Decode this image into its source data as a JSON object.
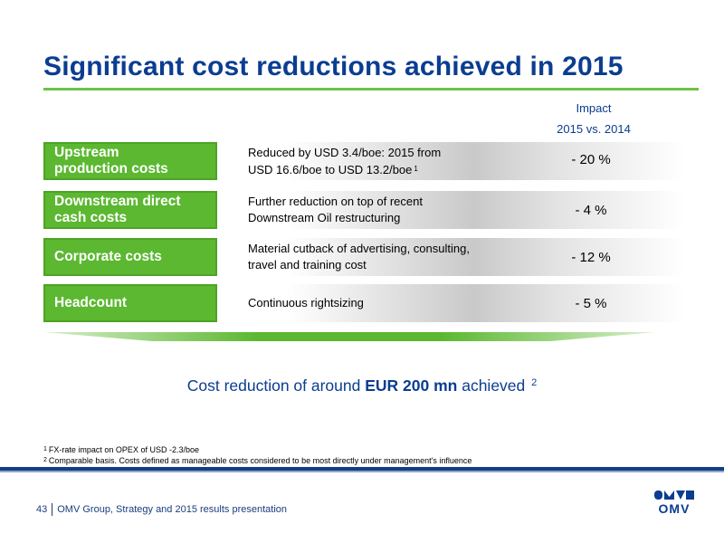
{
  "slide": {
    "title": "Significant cost reductions achieved in 2015",
    "impact_header": {
      "line1": "Impact",
      "line2": "2015 vs. 2014"
    }
  },
  "rows": [
    {
      "label_line1": "Upstream",
      "label_line2": "production costs",
      "desc_line1": "Reduced by USD 3.4/boe: 2015 from",
      "desc_line2": "USD 16.6/boe to USD 13.2/boe",
      "desc_note": "1",
      "impact": "- 20 %"
    },
    {
      "label_line1": "Downstream direct",
      "label_line2": "cash costs",
      "desc_line1": "Further reduction on top of recent",
      "desc_line2": "Downstream Oil restructuring",
      "desc_note": "",
      "impact": "-  4 %"
    },
    {
      "label_line1": "Corporate costs",
      "label_line2": "",
      "desc_line1": "Material cutback of advertising, consulting,",
      "desc_line2": "travel and training cost",
      "desc_note": "",
      "impact": "- 12 %"
    },
    {
      "label_line1": "Headcount",
      "label_line2": "",
      "desc_line1": "Continuous rightsizing",
      "desc_line2": "",
      "desc_note": "",
      "impact": "-  5 %"
    }
  ],
  "summary": {
    "prefix": "Cost reduction of around ",
    "highlight": "EUR 200 mn",
    "suffix": " achieved ",
    "note": "2"
  },
  "footnotes": [
    {
      "marker": "1",
      "text": "FX-rate impact on OPEX of USD -2.3/boe"
    },
    {
      "marker": "2",
      "text": "Comparable basis. Costs defined as manageable costs considered to be most directly under management's influence"
    }
  ],
  "footer": {
    "page_number": "43",
    "text": "OMV Group, Strategy and 2015 results presentation"
  },
  "logo": {
    "text": "OMV"
  },
  "colors": {
    "title_blue": "#0b3d91",
    "accent_green": "#5bb830",
    "band_blue": "#133e82"
  }
}
